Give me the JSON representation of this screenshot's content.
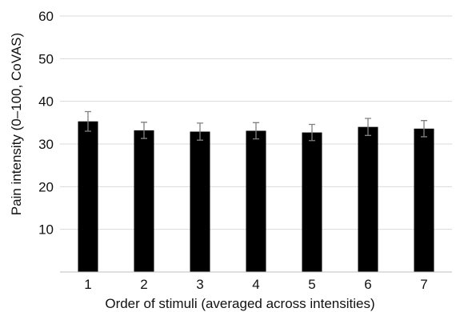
{
  "chart_data": {
    "type": "bar",
    "title": "",
    "xlabel": "Order of stimuli (averaged across intensities)",
    "ylabel": "Pain intensity (0–100, CoVAS)",
    "categories": [
      "1",
      "2",
      "3",
      "4",
      "5",
      "6",
      "7"
    ],
    "values": [
      35.3,
      33.2,
      32.9,
      33.1,
      32.7,
      34.0,
      33.6
    ],
    "error": [
      2.3,
      1.9,
      2.0,
      1.9,
      1.9,
      2.0,
      1.9
    ],
    "ylim": [
      0,
      60
    ],
    "yticks": [
      10,
      20,
      30,
      40,
      50,
      60
    ],
    "grid": true,
    "legend": "none",
    "colors": {
      "bar": "#000000",
      "error_bar": "#808080",
      "grid": "#d9d9d9"
    }
  }
}
